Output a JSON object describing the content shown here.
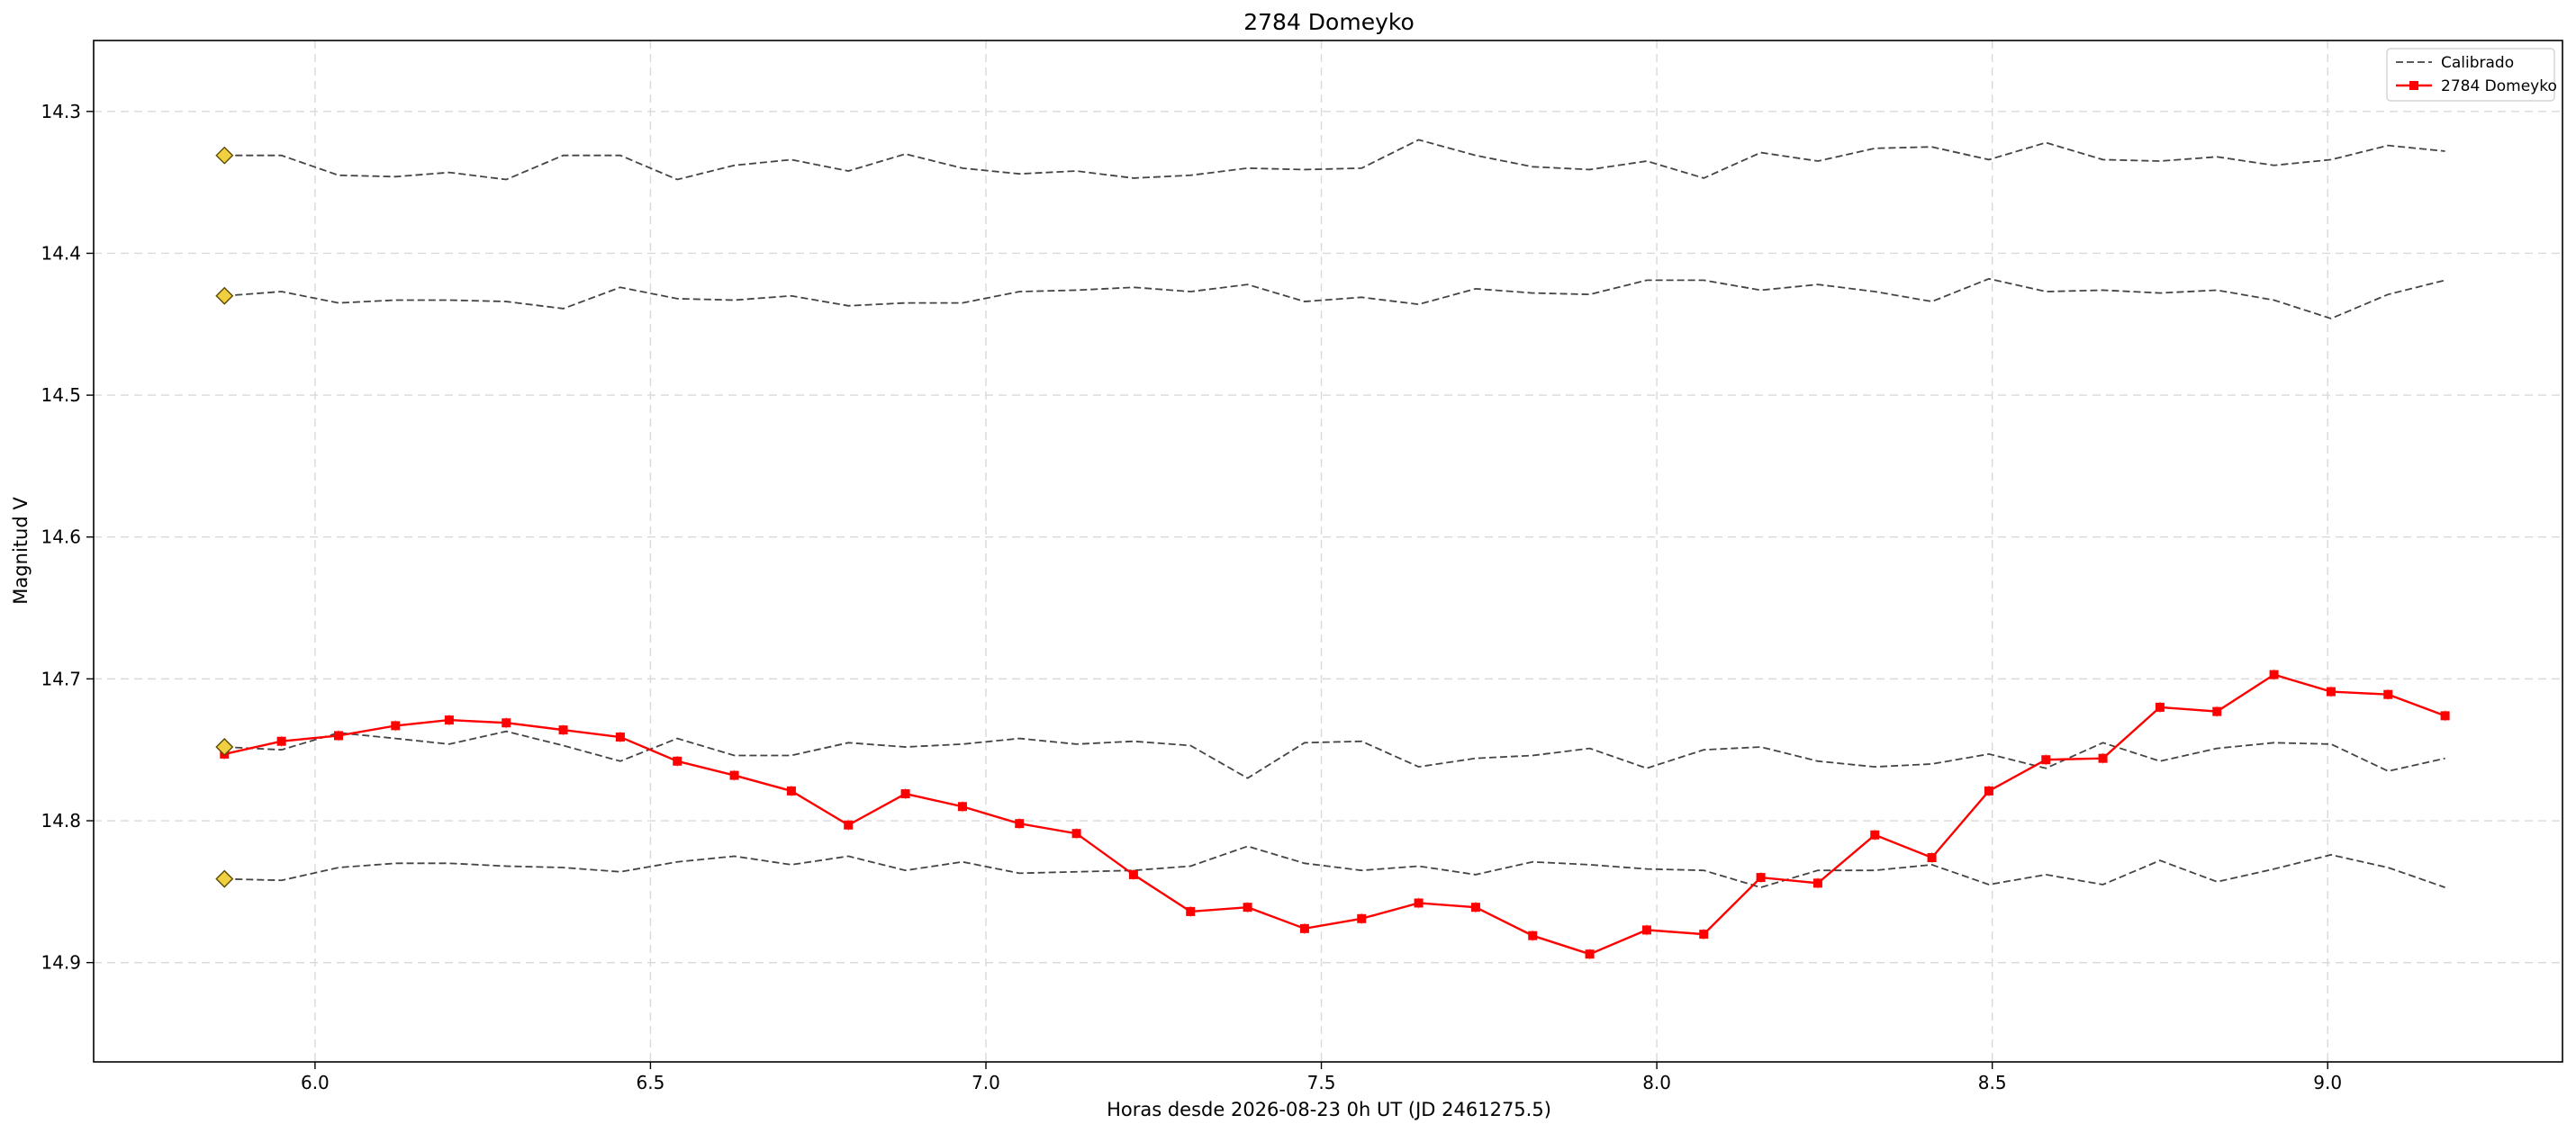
{
  "chart_data": {
    "type": "line",
    "title": "2784 Domeyko",
    "xlabel": "Horas desde 2026-08-23 0h UT (JD 2461275.5)",
    "ylabel": "Magnitud V",
    "xlim": [
      5.67,
      9.35
    ],
    "ylim": [
      14.97,
      14.25
    ],
    "y_inverted": true,
    "grid": true,
    "legend_position": "top-right",
    "x_ticks": [
      6.0,
      6.5,
      7.0,
      7.5,
      8.0,
      8.5,
      9.0
    ],
    "x_tick_labels": [
      "6.0",
      "6.5",
      "7.0",
      "7.5",
      "8.0",
      "8.5",
      "9.0"
    ],
    "y_ticks": [
      14.3,
      14.4,
      14.5,
      14.6,
      14.7,
      14.8,
      14.9
    ],
    "y_tick_labels": [
      "14.3",
      "14.4",
      "14.5",
      "14.6",
      "14.7",
      "14.8",
      "14.9"
    ],
    "x": [
      5.865,
      5.95,
      6.035,
      6.12,
      6.2,
      6.285,
      6.37,
      6.455,
      6.54,
      6.625,
      6.71,
      6.795,
      6.88,
      6.965,
      7.05,
      7.135,
      7.22,
      7.305,
      7.39,
      7.475,
      7.56,
      7.645,
      7.73,
      7.815,
      7.9,
      7.985,
      8.07,
      8.155,
      8.24,
      8.325,
      8.41,
      8.495,
      8.58,
      8.665,
      8.75,
      8.835,
      8.92,
      9.005,
      9.09,
      9.175
    ],
    "series": [
      {
        "name": "Calibrado",
        "style": "dashed",
        "color": "#444444",
        "values": [
          14.331,
          14.331,
          14.345,
          14.346,
          14.343,
          14.348,
          14.331,
          14.331,
          14.348,
          14.338,
          14.334,
          14.342,
          14.33,
          14.34,
          14.344,
          14.342,
          14.347,
          14.345,
          14.34,
          14.341,
          14.34,
          14.32,
          14.331,
          14.339,
          14.341,
          14.335,
          14.347,
          14.329,
          14.335,
          14.326,
          14.325,
          14.334,
          14.322,
          14.334,
          14.335,
          14.332,
          14.338,
          14.334,
          14.324,
          14.328
        ]
      },
      {
        "name": "",
        "style": "dashed",
        "color": "#444444",
        "values": [
          14.43,
          14.427,
          14.435,
          14.433,
          14.433,
          14.434,
          14.439,
          14.424,
          14.432,
          14.433,
          14.43,
          14.437,
          14.435,
          14.435,
          14.427,
          14.426,
          14.424,
          14.427,
          14.422,
          14.434,
          14.431,
          14.436,
          14.425,
          14.428,
          14.429,
          14.419,
          14.419,
          14.426,
          14.422,
          14.427,
          14.434,
          14.418,
          14.427,
          14.426,
          14.428,
          14.426,
          14.433,
          14.446,
          14.429,
          14.419
        ]
      },
      {
        "name": "",
        "style": "dashed",
        "color": "#444444",
        "values": [
          14.748,
          14.75,
          14.738,
          14.742,
          14.746,
          14.737,
          14.747,
          14.758,
          14.742,
          14.754,
          14.754,
          14.745,
          14.748,
          14.746,
          14.742,
          14.746,
          14.744,
          14.747,
          14.77,
          14.745,
          14.744,
          14.762,
          14.756,
          14.754,
          14.749,
          14.763,
          14.75,
          14.748,
          14.758,
          14.762,
          14.76,
          14.753,
          14.763,
          14.745,
          14.758,
          14.749,
          14.745,
          14.746,
          14.765,
          14.756
        ]
      },
      {
        "name": "",
        "style": "dashed",
        "color": "#444444",
        "values": [
          14.841,
          14.842,
          14.833,
          14.83,
          14.83,
          14.832,
          14.833,
          14.836,
          14.829,
          14.825,
          14.831,
          14.825,
          14.835,
          14.829,
          14.837,
          14.836,
          14.835,
          14.832,
          14.818,
          14.83,
          14.835,
          14.832,
          14.838,
          14.829,
          14.831,
          14.834,
          14.835,
          14.847,
          14.835,
          14.835,
          14.831,
          14.845,
          14.838,
          14.845,
          14.828,
          14.843,
          14.834,
          14.824,
          14.833,
          14.847
        ]
      },
      {
        "name": "2784 Domeyko",
        "style": "solid-markers",
        "color": "#ff0000",
        "values": [
          14.753,
          14.744,
          14.74,
          14.733,
          14.729,
          14.731,
          14.736,
          14.741,
          14.758,
          14.768,
          14.779,
          14.803,
          14.781,
          14.79,
          14.802,
          14.809,
          14.838,
          14.864,
          14.861,
          14.876,
          14.869,
          14.858,
          14.861,
          14.881,
          14.894,
          14.877,
          14.88,
          14.84,
          14.844,
          14.81,
          14.826,
          14.779,
          14.757,
          14.756,
          14.72,
          14.723,
          14.697,
          14.709,
          14.711,
          14.726
        ]
      }
    ],
    "comparison_markers": {
      "x": 5.865,
      "values": [
        14.331,
        14.43,
        14.748,
        14.841
      ],
      "color": "#f0d040"
    },
    "legend": {
      "items": [
        "Calibrado",
        "2784 Domeyko"
      ]
    }
  }
}
